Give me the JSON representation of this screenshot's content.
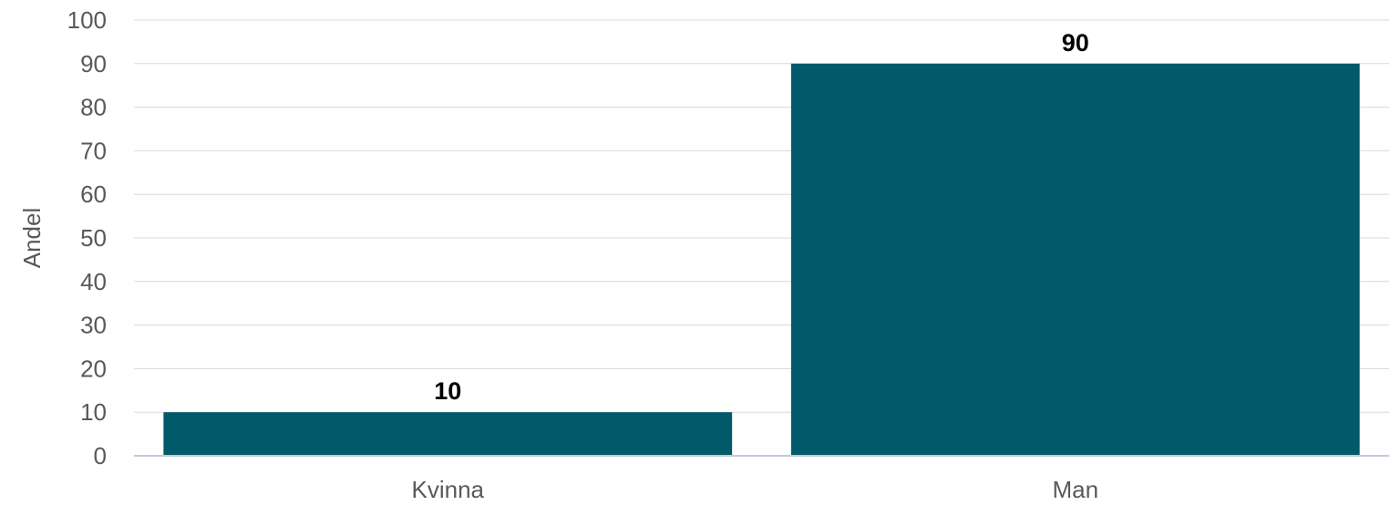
{
  "chart_data": {
    "type": "bar",
    "title": "",
    "xlabel": "",
    "ylabel": "Andel",
    "categories": [
      "Kvinna",
      "Man"
    ],
    "values": [
      10,
      90
    ],
    "data_labels": [
      "10",
      "90"
    ],
    "ylim": [
      0,
      100
    ],
    "yticks": [
      "0",
      "10",
      "20",
      "30",
      "40",
      "50",
      "60",
      "70",
      "80",
      "90",
      "100"
    ],
    "grid": true,
    "legend": "none",
    "bar_color": "#005a69",
    "grid_color": "#d9d9d9",
    "axis_color": "#bfcbd9"
  }
}
